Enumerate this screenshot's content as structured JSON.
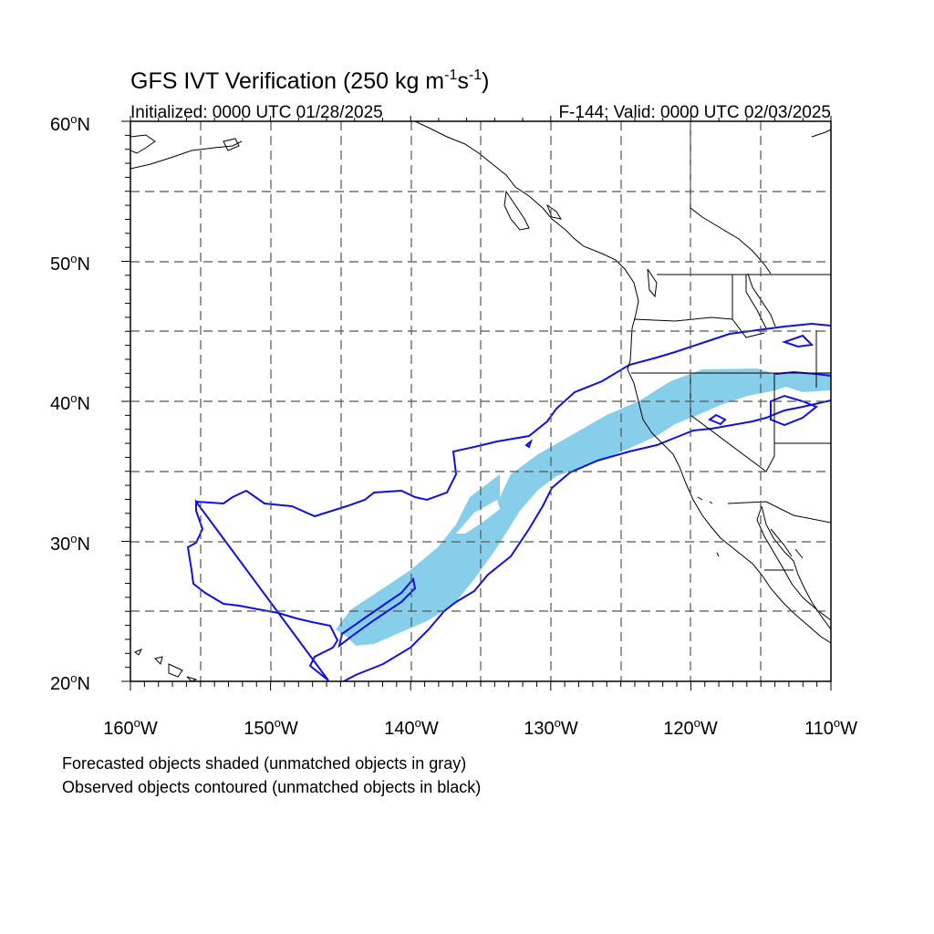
{
  "title": {
    "main": "GFS IVT Verification (250 kg m",
    "exp1": "-1",
    "mid": "s",
    "exp2": "-1",
    "close": ")"
  },
  "initialized": "Initialized: 0000 UTC 01/28/2025",
  "valid": "F-144: Valid: 0000 UTC 02/03/2025",
  "lat_labels": [
    {
      "deg": "60",
      "hem": "N"
    },
    {
      "deg": "50",
      "hem": "N"
    },
    {
      "deg": "40",
      "hem": "N"
    },
    {
      "deg": "30",
      "hem": "N"
    },
    {
      "deg": "20",
      "hem": "N"
    }
  ],
  "lon_labels": [
    {
      "deg": "160",
      "hem": "W"
    },
    {
      "deg": "150",
      "hem": "W"
    },
    {
      "deg": "140",
      "hem": "W"
    },
    {
      "deg": "130",
      "hem": "W"
    },
    {
      "deg": "120",
      "hem": "W"
    },
    {
      "deg": "110",
      "hem": "W"
    }
  ],
  "footer": {
    "line1": "Forecasted objects shaded (unmatched objects in gray)",
    "line2": "Observed objects contoured (unmatched objects in black)"
  },
  "colors": {
    "forecast_fill": "#87ceeb",
    "observed_contour": "#1010e0",
    "coastline": "#000000",
    "grid": "#555555"
  },
  "map_extent": {
    "lon": [
      -160,
      -110
    ],
    "lat": [
      20,
      60
    ]
  },
  "grid_spacing_deg": 5
}
